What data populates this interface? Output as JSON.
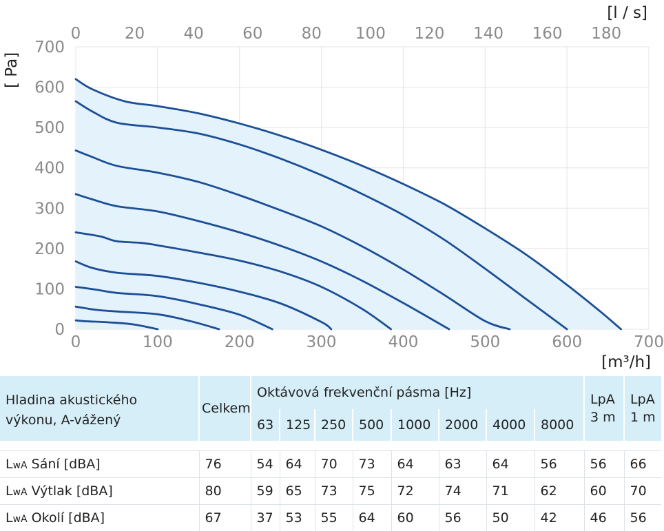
{
  "chart_data": {
    "type": "line",
    "xlabel_bottom": "[m³/h]",
    "xlabel_top": "[l / s]",
    "ylabel": "[ Pa]",
    "xlim": [
      0,
      700
    ],
    "ylim": [
      0,
      700
    ],
    "x_ticks": [
      "0",
      "100",
      "200",
      "300",
      "400",
      "500",
      "600",
      "700"
    ],
    "x_top_ticks": [
      "0",
      "20",
      "40",
      "60",
      "80",
      "100",
      "120",
      "140",
      "160",
      "180"
    ],
    "y_ticks": [
      "0",
      "100",
      "200",
      "300",
      "400",
      "500",
      "600",
      "700"
    ],
    "grid": true,
    "fill_color": "#e3f2fb",
    "line_color": "#1c4e96",
    "series": [
      {
        "x": [
          0,
          20,
          60,
          100,
          150,
          200,
          250,
          300,
          350,
          400,
          450,
          500,
          550,
          600,
          640,
          666
        ],
        "y": [
          620,
          595,
          565,
          553,
          535,
          510,
          480,
          445,
          405,
          360,
          310,
          250,
          185,
          110,
          45,
          0
        ]
      },
      {
        "x": [
          0,
          20,
          50,
          100,
          150,
          200,
          250,
          300,
          350,
          400,
          450,
          500,
          550,
          600
        ],
        "y": [
          565,
          540,
          512,
          500,
          485,
          458,
          423,
          382,
          335,
          283,
          222,
          150,
          75,
          0
        ]
      },
      {
        "x": [
          0,
          20,
          50,
          100,
          150,
          200,
          250,
          300,
          350,
          400,
          450,
          500,
          530
        ],
        "y": [
          443,
          427,
          405,
          388,
          365,
          332,
          295,
          255,
          205,
          148,
          85,
          20,
          0
        ]
      },
      {
        "x": [
          0,
          20,
          50,
          100,
          150,
          200,
          250,
          300,
          350,
          400,
          456
        ],
        "y": [
          335,
          322,
          305,
          292,
          268,
          240,
          207,
          168,
          120,
          65,
          0
        ]
      },
      {
        "x": [
          0,
          30,
          50,
          80,
          100,
          150,
          200,
          250,
          300,
          350,
          385
        ],
        "y": [
          240,
          230,
          218,
          214,
          208,
          190,
          170,
          143,
          105,
          50,
          0
        ]
      },
      {
        "x": [
          0,
          20,
          50,
          100,
          150,
          200,
          250,
          300,
          312
        ],
        "y": [
          168,
          152,
          140,
          132,
          115,
          93,
          64,
          18,
          0
        ]
      },
      {
        "x": [
          0,
          25,
          50,
          100,
          150,
          200,
          240
        ],
        "y": [
          105,
          98,
          90,
          82,
          62,
          36,
          0
        ]
      },
      {
        "x": [
          0,
          25,
          50,
          100,
          140,
          175
        ],
        "y": [
          56,
          48,
          44,
          37,
          20,
          0
        ]
      },
      {
        "x": [
          0,
          10,
          40,
          70,
          100
        ],
        "y": [
          22,
          20,
          17,
          12,
          0
        ]
      }
    ]
  },
  "table": {
    "header_label": [
      "Hladina akustického",
      "výkonu, A-vážený"
    ],
    "total_label": "Celkem",
    "octave_label": "Oktávová frekvenční pásma [Hz]",
    "freqs": [
      "63",
      "125",
      "250",
      "500",
      "1000",
      "2000",
      "4000",
      "8000"
    ],
    "lpa3": [
      "LpA",
      "3 m"
    ],
    "lpa1": [
      "LpA",
      "1 m"
    ],
    "rows": [
      {
        "lw": "L",
        "sub": "wA",
        "name": "Sání [dBA]",
        "total": "76",
        "bands": [
          "54",
          "64",
          "70",
          "73",
          "64",
          "63",
          "64",
          "56"
        ],
        "lpa3": "56",
        "lpa1": "66"
      },
      {
        "lw": "L",
        "sub": "wA",
        "name": "Výtlak [dBA]",
        "total": "80",
        "bands": [
          "59",
          "65",
          "73",
          "75",
          "72",
          "74",
          "71",
          "62"
        ],
        "lpa3": "60",
        "lpa1": "70"
      },
      {
        "lw": "L",
        "sub": "wA",
        "name": "Okolí [dBA]",
        "total": "67",
        "bands": [
          "37",
          "53",
          "55",
          "64",
          "60",
          "56",
          "50",
          "42"
        ],
        "lpa3": "46",
        "lpa1": "56"
      }
    ]
  }
}
